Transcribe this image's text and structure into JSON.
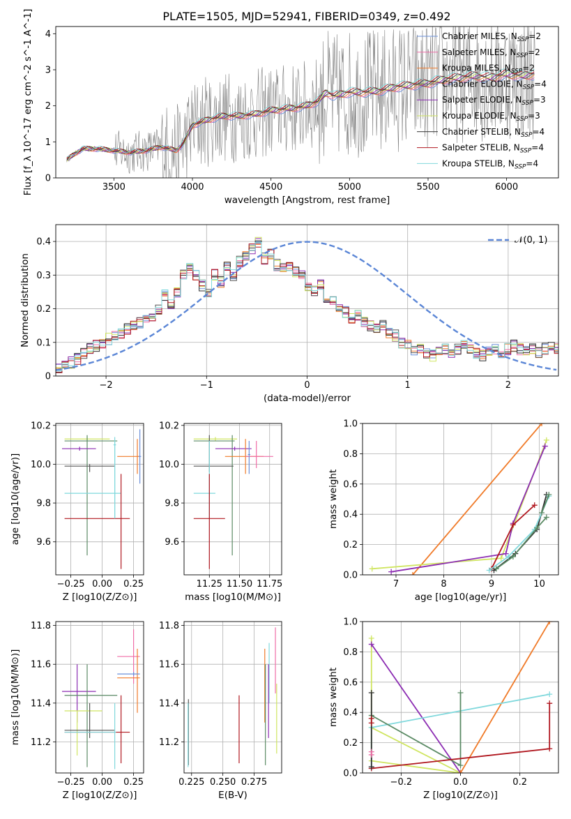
{
  "figure_title": "PLATE=1505, MJD=52941, FIBERID=0349, z=0.492",
  "series_colors": {
    "Chabrier MILES": "#6a8fd9",
    "Salpeter MILES": "#f06ca7",
    "Kroupa MILES": "#f07a28",
    "Chabrier ELODIE": "#555555",
    "Salpeter ELODIE": "#8b2bb2",
    "Kroupa ELODIE": "#cfe560",
    "Chabrier STELIB": "#2f2f2f",
    "Salpeter STELIB": "#b0161e",
    "Kroupa STELIB": "#7fd8dc",
    "data": "#808080",
    "normal": "#5b86d6",
    "green": "#5a8a64"
  },
  "chart_data": [
    {
      "type": "line",
      "panel": "spectrum",
      "xlabel": "wavelength [Angstrom, rest frame]",
      "ylabel": "Flux [f_λ 10^-17 erg cm^-2 s^-1 A^-1]",
      "xlim": [
        3130,
        6330
      ],
      "ylim": [
        0,
        4.2
      ],
      "xticks": [
        3500,
        4000,
        4500,
        5000,
        5500,
        6000
      ],
      "yticks": [
        0,
        1,
        2,
        3,
        4
      ],
      "legend": {
        "placement": "upper-right",
        "entries": [
          {
            "name": "Chabrier MILES",
            "nssp": "2"
          },
          {
            "name": "Salpeter MILES",
            "nssp": "2"
          },
          {
            "name": "Kroupa MILES",
            "nssp": "2"
          },
          {
            "name": "Chabrier ELODIE",
            "nssp": "4"
          },
          {
            "name": "Salpeter ELODIE",
            "nssp": "3"
          },
          {
            "name": "Kroupa ELODIE",
            "nssp": "3"
          },
          {
            "name": "Chabrier STELIB",
            "nssp": "4"
          },
          {
            "name": "Salpeter STELIB",
            "nssp": "4"
          },
          {
            "name": "Kroupa STELIB",
            "nssp": "4"
          }
        ]
      },
      "model_continuum": {
        "x": [
          3200,
          3230,
          3300,
          3400,
          3500,
          3600,
          3700,
          3800,
          3900,
          3950,
          4000,
          4100,
          4200,
          4300,
          4400,
          4500,
          4600,
          4700,
          4800,
          4850,
          4900,
          5000,
          5100,
          5200,
          5300,
          5400,
          5500,
          5600,
          5700,
          5800,
          5900,
          6000,
          6100,
          6180
        ],
        "y": [
          0.5,
          0.6,
          0.8,
          0.8,
          0.75,
          0.7,
          0.75,
          0.85,
          0.75,
          1.0,
          1.45,
          1.6,
          1.7,
          1.7,
          1.75,
          1.85,
          1.9,
          1.95,
          2.1,
          2.35,
          2.25,
          2.35,
          2.35,
          2.4,
          2.5,
          2.55,
          2.6,
          2.7,
          2.75,
          2.8,
          2.75,
          2.85,
          2.8,
          2.85
        ]
      }
    },
    {
      "type": "bar",
      "panel": "residuals",
      "xlabel": "(data-model)/error",
      "ylabel": "Normed distribution",
      "xlim": [
        -2.5,
        2.5
      ],
      "ylim": [
        0,
        0.45
      ],
      "xticks": [
        -2,
        -1,
        0,
        1,
        2
      ],
      "yticks": [
        0.0,
        0.1,
        0.2,
        0.3,
        0.4
      ],
      "legend": {
        "placement": "upper-right",
        "entries": [
          "𝒩(0, 1)"
        ]
      },
      "bin_width": 0.1,
      "bin_start": -2.5,
      "histogram_shape": [
        0.025,
        0.03,
        0.04,
        0.05,
        0.07,
        0.08,
        0.09,
        0.1,
        0.11,
        0.12,
        0.13,
        0.14,
        0.15,
        0.16,
        0.165,
        0.18,
        0.2,
        0.24,
        0.21,
        0.25,
        0.3,
        0.32,
        0.3,
        0.27,
        0.24,
        0.3,
        0.28,
        0.33,
        0.3,
        0.34,
        0.36,
        0.38,
        0.4,
        0.35,
        0.36,
        0.33,
        0.32,
        0.33,
        0.31,
        0.3,
        0.26,
        0.25,
        0.27,
        0.23,
        0.22,
        0.2,
        0.19,
        0.17,
        0.18,
        0.16,
        0.15,
        0.14,
        0.15,
        0.13,
        0.12,
        0.1,
        0.09,
        0.08,
        0.08,
        0.07,
        0.06,
        0.07,
        0.08,
        0.07,
        0.08,
        0.09,
        0.08,
        0.07,
        0.06,
        0.07,
        0.08,
        0.07,
        0.08,
        0.09,
        0.08,
        0.07,
        0.08,
        0.07,
        0.08,
        0.09,
        0.08
      ],
      "normal_curve": "N(0,1)"
    },
    {
      "type": "scatter",
      "panel": "age-vs-Z",
      "xlabel": "Z [log10(Z/Z⊙)]",
      "ylabel": "age [log10(age/yr)]",
      "xlim": [
        -0.37,
        0.33
      ],
      "ylim": [
        9.43,
        10.21
      ],
      "xticks": [
        "-0.25",
        "0.00",
        "0.25"
      ],
      "xtick_values": [
        -0.25,
        0.0,
        0.25
      ],
      "yticks": [
        "9.6",
        "9.8",
        "10.0",
        "10.2"
      ],
      "ytick_values": [
        9.6,
        9.8,
        10.0,
        10.2
      ],
      "errorbars": [
        {
          "c": "Kroupa ELODIE",
          "x": -0.12,
          "y": 10.13,
          "xl": -0.3,
          "xh": 0.06,
          "yl": 10.12,
          "yh": 10.14
        },
        {
          "c": "green",
          "x": -0.12,
          "y": 10.12,
          "xl": -0.3,
          "xh": 0.12,
          "yl": 9.53,
          "yh": 10.15
        },
        {
          "c": "Salpeter ELODIE",
          "x": -0.18,
          "y": 10.08,
          "xl": -0.32,
          "xh": -0.05,
          "yl": 10.07,
          "yh": 10.09
        },
        {
          "c": "Chabrier ELODIE",
          "x": -0.1,
          "y": 9.99,
          "xl": -0.3,
          "xh": 0.1,
          "yl": 9.96,
          "yh": 10.0
        },
        {
          "c": "Kroupa STELIB",
          "x": 0.1,
          "y": 9.85,
          "xl": -0.3,
          "xh": 0.15,
          "yl": 9.72,
          "yh": 10.12
        },
        {
          "c": "Salpeter STELIB",
          "x": 0.15,
          "y": 9.72,
          "xl": -0.3,
          "xh": 0.22,
          "yl": 9.46,
          "yh": 9.95
        },
        {
          "c": "Kroupa MILES",
          "x": 0.28,
          "y": 10.04,
          "xl": 0.12,
          "xh": 0.3,
          "yl": 9.95,
          "yh": 10.13
        },
        {
          "c": "Chabrier MILES",
          "x": 0.3,
          "y": 10.04,
          "xl": 0.29,
          "xh": 0.31,
          "yl": 9.9,
          "yh": 10.18
        },
        {
          "c": "Kroupa STELIB",
          "x": 0.1,
          "y": 10.1,
          "xl": 0.09,
          "xh": 0.11,
          "yl": 9.72,
          "yh": 10.14
        }
      ]
    },
    {
      "type": "scatter",
      "panel": "age-vs-mass",
      "xlabel": "mass [log10(M/M⊙)]",
      "ylabel": "",
      "xlim": [
        11.04,
        11.85
      ],
      "ylim": [
        9.43,
        10.21
      ],
      "xticks": [
        "11.25",
        "11.50",
        "11.75"
      ],
      "xtick_values": [
        11.25,
        11.5,
        11.75
      ],
      "yticks": [
        "9.6",
        "9.8",
        "10.0",
        "10.2"
      ],
      "ytick_values": [
        9.6,
        9.8,
        10.0,
        10.2
      ],
      "errorbars": [
        {
          "c": "Kroupa ELODIE",
          "x": 11.3,
          "y": 10.13,
          "xl": 11.12,
          "xh": 11.48,
          "yl": 10.12,
          "yh": 10.14
        },
        {
          "c": "green",
          "x": 11.44,
          "y": 10.12,
          "xl": 11.12,
          "xh": 11.46,
          "yl": 9.53,
          "yh": 10.15
        },
        {
          "c": "Salpeter ELODIE",
          "x": 11.46,
          "y": 10.08,
          "xl": 11.3,
          "xh": 11.6,
          "yl": 10.07,
          "yh": 10.09
        },
        {
          "c": "Chabrier ELODIE",
          "x": 11.25,
          "y": 9.99,
          "xl": 11.12,
          "xh": 11.45,
          "yl": 9.96,
          "yh": 10.15
        },
        {
          "c": "Kroupa STELIB",
          "x": 11.25,
          "y": 9.85,
          "xl": 11.12,
          "xh": 11.3,
          "yl": 9.72,
          "yh": 10.12
        },
        {
          "c": "Salpeter STELIB",
          "x": 11.25,
          "y": 9.72,
          "xl": 11.12,
          "xh": 11.38,
          "yl": 9.46,
          "yh": 9.95
        },
        {
          "c": "Kroupa MILES",
          "x": 11.55,
          "y": 10.04,
          "xl": 11.38,
          "xh": 11.7,
          "yl": 9.95,
          "yh": 10.13
        },
        {
          "c": "Salpeter MILES",
          "x": 11.64,
          "y": 10.04,
          "xl": 11.55,
          "xh": 11.78,
          "yl": 9.98,
          "yh": 10.12
        },
        {
          "c": "Chabrier MILES",
          "x": 11.58,
          "y": 10.05,
          "xl": 11.57,
          "xh": 11.59,
          "yl": 9.95,
          "yh": 10.12
        }
      ]
    },
    {
      "type": "line",
      "panel": "mass-weight-vs-age",
      "xlabel": "age [log10(age/yr)]",
      "ylabel": "mass weight",
      "xlim": [
        6.3,
        10.4
      ],
      "ylim": [
        0,
        1.0
      ],
      "xticks": [
        "7",
        "8",
        "9",
        "10"
      ],
      "xtick_values": [
        7,
        8,
        9,
        10
      ],
      "yticks": [
        "0.0",
        "0.2",
        "0.4",
        "0.6",
        "0.8",
        "1.0"
      ],
      "ytick_values": [
        0.0,
        0.2,
        0.4,
        0.6,
        0.8,
        1.0
      ],
      "lines": [
        {
          "c": "Kroupa MILES",
          "x": [
            7.35,
            10.05
          ],
          "y": [
            0.0,
            1.0
          ]
        },
        {
          "c": "Kroupa ELODIE",
          "x": [
            6.5,
            9.2,
            10.15
          ],
          "y": [
            0.04,
            0.11,
            0.89
          ]
        },
        {
          "c": "Salpeter ELODIE",
          "x": [
            6.9,
            9.3,
            9.45,
            10.12
          ],
          "y": [
            0.02,
            0.14,
            0.34,
            0.85
          ]
        },
        {
          "c": "Salpeter STELIB",
          "x": [
            9.0,
            9.45,
            9.9
          ],
          "y": [
            0.04,
            0.33,
            0.46
          ]
        },
        {
          "c": "Chabrier STELIB",
          "x": [
            9.05,
            9.5,
            9.95,
            10.15
          ],
          "y": [
            0.03,
            0.14,
            0.3,
            0.53
          ]
        },
        {
          "c": "Kroupa STELIB",
          "x": [
            8.95,
            9.35,
            9.9,
            10.2
          ],
          "y": [
            0.03,
            0.12,
            0.3,
            0.52
          ]
        },
        {
          "c": "green",
          "x": [
            9.1,
            9.45,
            9.95,
            10.15
          ],
          "y": [
            0.04,
            0.12,
            0.31,
            0.38
          ]
        },
        {
          "c": "green",
          "x": [
            10.05,
            10.2
          ],
          "y": [
            0.41,
            0.53
          ]
        }
      ]
    },
    {
      "type": "scatter",
      "panel": "mass-vs-Z",
      "xlabel": "Z [log10(Z/Z⊙)]",
      "ylabel": "mass [log10(M/M⊙)]",
      "xlim": [
        -0.37,
        0.33
      ],
      "ylim": [
        11.04,
        11.82
      ],
      "xticks": [
        "-0.25",
        "0.00",
        "0.25"
      ],
      "xtick_values": [
        -0.25,
        0.0,
        0.25
      ],
      "yticks": [
        "11.2",
        "11.4",
        "11.6",
        "11.8"
      ],
      "ytick_values": [
        11.2,
        11.4,
        11.6,
        11.8
      ],
      "errorbars": [
        {
          "c": "Salpeter MILES",
          "x": 0.25,
          "y": 11.64,
          "xl": 0.12,
          "xh": 0.3,
          "yl": 11.5,
          "yh": 11.78
        },
        {
          "c": "Kroupa MILES",
          "x": 0.28,
          "y": 11.53,
          "xl": 0.12,
          "xh": 0.3,
          "yl": 11.35,
          "yh": 11.68
        },
        {
          "c": "Chabrier MILES",
          "x": 0.25,
          "y": 11.55,
          "xl": 0.12,
          "xh": 0.3,
          "yl": 11.54,
          "yh": 11.56
        },
        {
          "c": "Salpeter ELODIE",
          "x": -0.2,
          "y": 11.46,
          "xl": -0.32,
          "xh": -0.05,
          "yl": 11.3,
          "yh": 11.6
        },
        {
          "c": "green",
          "x": -0.12,
          "y": 11.44,
          "xl": -0.3,
          "xh": 0.12,
          "yl": 11.07,
          "yh": 11.6
        },
        {
          "c": "Kroupa ELODIE",
          "x": -0.2,
          "y": 11.36,
          "xl": -0.3,
          "xh": 0.0,
          "yl": 11.13,
          "yh": 11.36
        },
        {
          "c": "Salpeter STELIB",
          "x": 0.15,
          "y": 11.25,
          "xl": -0.3,
          "xh": 0.22,
          "yl": 11.09,
          "yh": 11.44
        },
        {
          "c": "Chabrier ELODIE",
          "x": -0.1,
          "y": 11.26,
          "xl": -0.3,
          "xh": 0.1,
          "yl": 11.22,
          "yh": 11.4
        },
        {
          "c": "Kroupa STELIB",
          "x": 0.1,
          "y": 11.25,
          "xl": -0.3,
          "xh": 0.11,
          "yl": 11.06,
          "yh": 11.4
        }
      ]
    },
    {
      "type": "scatter",
      "panel": "mass-vs-EBV",
      "xlabel": "E(B-V)",
      "ylabel": "",
      "xlim": [
        0.219,
        0.297
      ],
      "ylim": [
        11.04,
        11.82
      ],
      "xticks": [
        "0.225",
        "0.250",
        "0.275"
      ],
      "xtick_values": [
        0.225,
        0.25,
        0.275
      ],
      "yticks": [
        "11.2",
        "11.4",
        "11.6",
        "11.8"
      ],
      "ytick_values": [
        11.2,
        11.4,
        11.6,
        11.8
      ],
      "errorbars": [
        {
          "c": "Chabrier ELODIE",
          "x": 0.2225,
          "y": 11.25,
          "xl": 0.2225,
          "xh": 0.2225,
          "yl": 11.08,
          "yh": 11.42
        },
        {
          "c": "Kroupa STELIB",
          "x": 0.2222,
          "y": 11.24,
          "xl": 0.2222,
          "xh": 0.2222,
          "yl": 11.07,
          "yh": 11.4
        },
        {
          "c": "Salpeter STELIB",
          "x": 0.263,
          "y": 11.26,
          "xl": 0.263,
          "xh": 0.263,
          "yl": 11.09,
          "yh": 11.44
        },
        {
          "c": "Kroupa MILES",
          "x": 0.2835,
          "y": 11.5,
          "xl": 0.2835,
          "xh": 0.2835,
          "yl": 11.3,
          "yh": 11.68
        },
        {
          "c": "green",
          "x": 0.284,
          "y": 11.43,
          "xl": 0.284,
          "xh": 0.284,
          "yl": 11.08,
          "yh": 11.6
        },
        {
          "c": "Kroupa STELIB",
          "x": 0.287,
          "y": 11.55,
          "xl": 0.287,
          "xh": 0.287,
          "yl": 11.4,
          "yh": 11.71
        },
        {
          "c": "Salpeter ELODIE",
          "x": 0.2865,
          "y": 11.4,
          "xl": 0.2865,
          "xh": 0.2865,
          "yl": 11.22,
          "yh": 11.6
        },
        {
          "c": "Salpeter MILES",
          "x": 0.292,
          "y": 11.62,
          "xl": 0.292,
          "xh": 0.292,
          "yl": 11.45,
          "yh": 11.79
        },
        {
          "c": "Kroupa ELODIE",
          "x": 0.293,
          "y": 11.32,
          "xl": 0.293,
          "xh": 0.293,
          "yl": 11.14,
          "yh": 11.5
        }
      ]
    },
    {
      "type": "line",
      "panel": "mass-weight-vs-Z",
      "xlabel": "Z [log10(Z/Z⊙)]",
      "ylabel": "mass weight",
      "xlim": [
        -0.33,
        0.33
      ],
      "ylim": [
        0,
        1.0
      ],
      "xticks": [
        "−0.2",
        "0.0",
        "0.2"
      ],
      "xtick_values": [
        -0.2,
        0.0,
        0.2
      ],
      "yticks": [
        "0.0",
        "0.2",
        "0.4",
        "0.6",
        "0.8",
        "1.0"
      ],
      "ytick_values": [
        0.0,
        0.2,
        0.4,
        0.6,
        0.8,
        1.0
      ],
      "lines": [
        {
          "c": "Kroupa ELODIE",
          "x": [
            -0.3,
            -0.3,
            0.0,
            -0.3
          ],
          "y": [
            0.89,
            0.08,
            0.0,
            0.3
          ]
        },
        {
          "c": "Salpeter ELODIE",
          "x": [
            -0.3,
            0.0
          ],
          "y": [
            0.85,
            0.0
          ]
        },
        {
          "c": "Kroupa MILES",
          "x": [
            0.0,
            0.3
          ],
          "y": [
            0.0,
            1.0
          ]
        },
        {
          "c": "Kroupa STELIB",
          "x": [
            -0.3,
            -0.3,
            0.3
          ],
          "y": [
            0.03,
            0.3,
            0.52
          ]
        },
        {
          "c": "green",
          "x": [
            -0.3,
            0.0,
            0.0
          ],
          "y": [
            0.38,
            0.05,
            0.53
          ]
        },
        {
          "c": "Salpeter STELIB",
          "x": [
            -0.3,
            0.3,
            0.3
          ],
          "y": [
            0.03,
            0.16,
            0.46
          ]
        },
        {
          "c": "Chabrier STELIB",
          "x": [
            -0.3,
            -0.3
          ],
          "y": [
            0.53,
            0.04
          ]
        },
        {
          "c": "Salpeter STELIB",
          "x": [
            -0.3,
            -0.3
          ],
          "y": [
            0.36,
            0.33
          ]
        },
        {
          "c": "Salpeter MILES",
          "x": [
            -0.3,
            -0.3
          ],
          "y": [
            0.14,
            0.12
          ]
        }
      ]
    }
  ]
}
